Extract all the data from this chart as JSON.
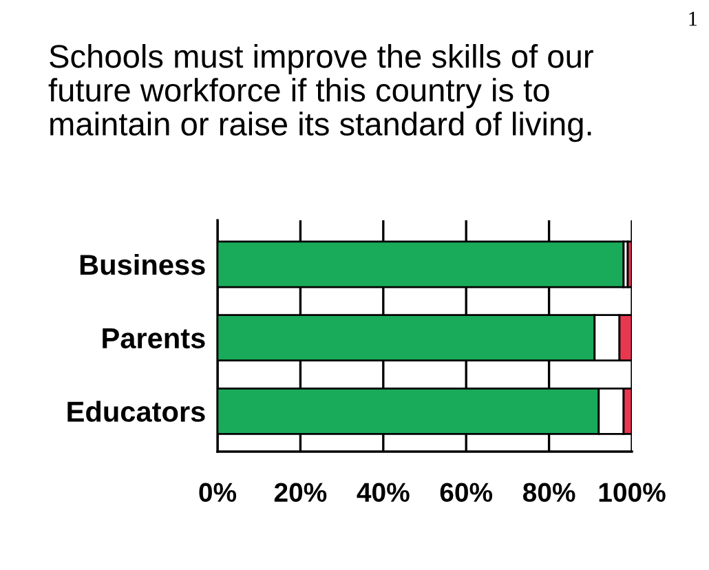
{
  "chart_data": {
    "type": "bar",
    "orientation": "horizontal",
    "stacked": true,
    "title": "Schools must improve the skills of our\nfuture workforce if this country is to\nmaintain or raise its standard of living.",
    "categories": [
      "Business",
      "Parents",
      "Educators"
    ],
    "series": [
      {
        "color": "#1aab5a",
        "values": [
          98,
          91,
          92
        ]
      },
      {
        "color": "#ffffff",
        "values": [
          1,
          6,
          6
        ]
      },
      {
        "color": "#e8384f",
        "values": [
          1,
          3,
          2
        ]
      }
    ],
    "xlim": [
      0,
      100
    ],
    "xticks": [
      {
        "value": 0,
        "label": "0%"
      },
      {
        "value": 20,
        "label": "20%"
      },
      {
        "value": 40,
        "label": "40%"
      },
      {
        "value": 60,
        "label": "60%"
      },
      {
        "value": 80,
        "label": "80%"
      },
      {
        "value": 100,
        "label": "100%"
      }
    ],
    "grid": "x",
    "annotations": [
      "1"
    ]
  }
}
